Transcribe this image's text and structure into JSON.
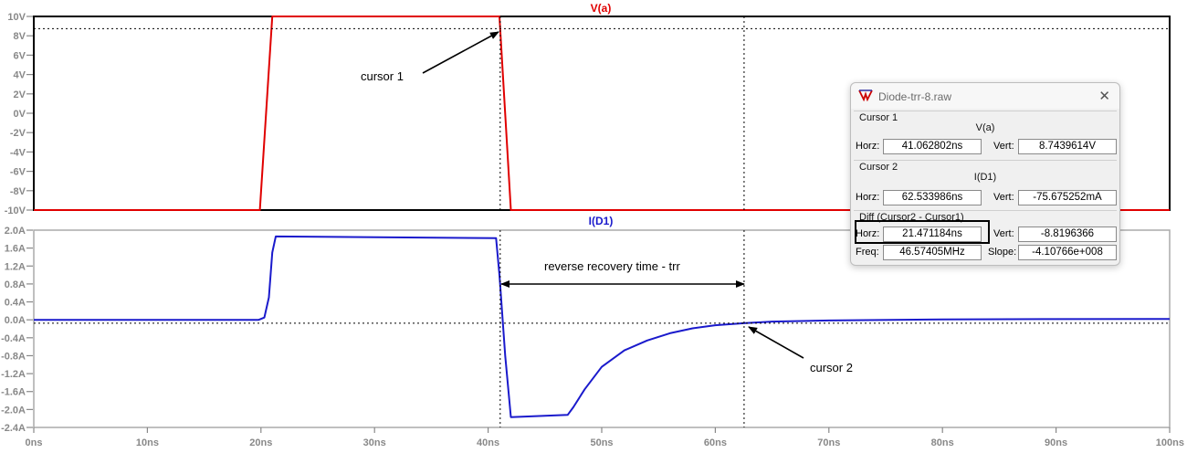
{
  "window": {
    "title": "Diode-trr-8.raw"
  },
  "top_panel": {
    "trace_title": "V(a)",
    "y_ticks": [
      "10V",
      "8V",
      "6V",
      "4V",
      "2V",
      "0V",
      "-2V",
      "-4V",
      "-6V",
      "-8V",
      "-10V"
    ]
  },
  "bottom_panel": {
    "trace_title": "I(D1)",
    "y_ticks": [
      "2.0A",
      "1.6A",
      "1.2A",
      "0.8A",
      "0.4A",
      "0.0A",
      "-0.4A",
      "-0.8A",
      "-1.2A",
      "-1.6A",
      "-2.0A",
      "-2.4A"
    ]
  },
  "x_axis": {
    "ticks": [
      "0ns",
      "10ns",
      "20ns",
      "30ns",
      "40ns",
      "50ns",
      "60ns",
      "70ns",
      "80ns",
      "90ns",
      "100ns"
    ]
  },
  "annotations": {
    "cursor1": "cursor 1",
    "cursor2": "cursor 2",
    "trr": "reverse recovery time - trr"
  },
  "cursor_dialog": {
    "cursor1": {
      "group": "Cursor 1",
      "trace": "V(a)",
      "horz_label": "Horz:",
      "horz": "41.062802ns",
      "vert_label": "Vert:",
      "vert": "8.7439614V"
    },
    "cursor2": {
      "group": "Cursor 2",
      "trace": "I(D1)",
      "horz_label": "Horz:",
      "horz": "62.533986ns",
      "vert_label": "Vert:",
      "vert": "-75.675252mA"
    },
    "diff": {
      "group": "Diff (Cursor2 - Cursor1)",
      "horz_label": "Horz:",
      "horz": "21.471184ns",
      "vert_label": "Vert:",
      "vert": "-8.8196366",
      "freq_label": "Freq:",
      "freq": "46.57405MHz",
      "slope_label": "Slope:",
      "slope": "-4.10766e+008"
    }
  },
  "colors": {
    "v_trace": "#e00000",
    "i_trace": "#1a1acc",
    "grid_tick": "#888888"
  },
  "chart_data": [
    {
      "type": "line",
      "title": "V(a)",
      "x": [
        0,
        19.9,
        21.0,
        41.0,
        42.0,
        100
      ],
      "series": [
        {
          "name": "V(a)",
          "values": [
            -10,
            -10,
            10,
            10,
            -10,
            -10
          ]
        }
      ],
      "xlim": [
        0,
        100
      ],
      "ylim": [
        -10,
        10
      ],
      "cursor_x": 41.062802,
      "cursor_y": 8.7439614
    },
    {
      "type": "line",
      "title": "I(D1)",
      "x": [
        0,
        19.8,
        20.3,
        20.7,
        21.0,
        21.3,
        40.7,
        41.0,
        41.5,
        42.0,
        47.0,
        47.5,
        48.5,
        50.0,
        52.0,
        54.0,
        56.0,
        58.0,
        60.0,
        62.5,
        65.0,
        70.0,
        80.0,
        90.0,
        100.0
      ],
      "series": [
        {
          "name": "I(D1)",
          "values": [
            0,
            0,
            0.05,
            0.5,
            1.5,
            1.86,
            1.82,
            1.0,
            -0.8,
            -2.17,
            -2.12,
            -1.95,
            -1.55,
            -1.05,
            -0.68,
            -0.46,
            -0.3,
            -0.19,
            -0.12,
            -0.076,
            -0.04,
            -0.015,
            0.01,
            0.015,
            0.02
          ]
        }
      ],
      "xlim": [
        0,
        100
      ],
      "ylim": [
        -2.4,
        2.0
      ],
      "cursor_x": 62.533986,
      "cursor_y": -0.075675252
    }
  ]
}
